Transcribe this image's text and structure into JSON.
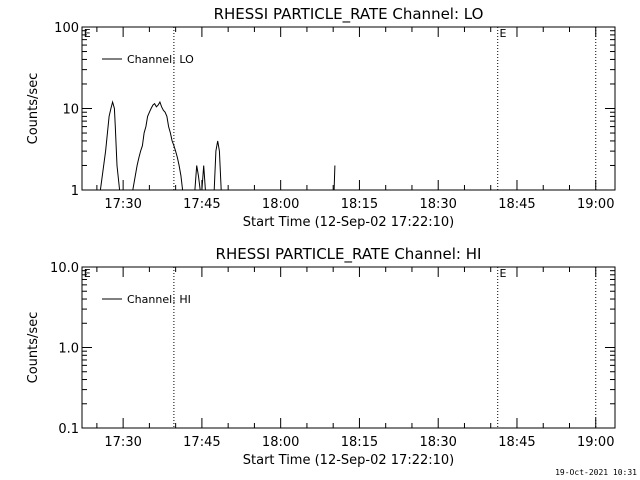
{
  "timestamp": "19-Oct-2021 10:31",
  "chart_data": [
    {
      "type": "line",
      "title": "RHESSI PARTICLE_RATE Channel: LO",
      "xlabel": "Start Time (12-Sep-02 17:22:10)",
      "ylabel": "Counts/sec",
      "yscale": "log",
      "ylim": [
        1,
        100
      ],
      "ytick_values": [
        1,
        10,
        100
      ],
      "ytick_labels": [
        "1",
        "10",
        "100"
      ],
      "xlim": [
        "17:22:10",
        "19:03:40"
      ],
      "xticks": [
        "17:30",
        "17:45",
        "18:00",
        "18:15",
        "18:30",
        "18:45",
        "19:00"
      ],
      "event_lines": [
        "17:39:40",
        "18:41:20",
        "19:00:00"
      ],
      "event_markers": [
        {
          "label": "E",
          "x": "17:22:30"
        },
        {
          "label": "E",
          "x": "18:41:40"
        }
      ],
      "legend_position": "upper-left",
      "series": [
        {
          "name": "Channel: LO",
          "x": [
            "17:25:40",
            "17:26:40",
            "17:27:20",
            "17:27:40",
            "17:28:00",
            "17:28:20",
            "17:28:30",
            "17:28:50",
            "17:29:20",
            "17:30:00",
            "17:31:50",
            "17:32:40",
            "17:33:00",
            "17:33:20",
            "17:33:40",
            "17:34:00",
            "17:34:20",
            "17:34:40",
            "17:35:00",
            "17:35:20",
            "17:35:40",
            "17:36:00",
            "17:36:20",
            "17:36:40",
            "17:37:00",
            "17:37:20",
            "17:37:40",
            "17:38:00",
            "17:38:20",
            "17:38:40",
            "17:39:00",
            "17:39:20",
            "17:39:40",
            "17:40:00",
            "17:40:20",
            "17:40:40",
            "17:41:00",
            "17:41:20",
            "17:41:40",
            "17:42:00",
            "17:42:20",
            "17:42:40",
            "17:43:00",
            "17:43:20",
            "17:43:40",
            "17:44:00",
            "17:44:20",
            "17:44:40",
            "17:45:00",
            "17:45:20",
            "17:45:40",
            "17:46:00",
            "17:46:20",
            "17:46:40",
            "17:47:00",
            "17:47:20",
            "17:47:40",
            "17:48:00",
            "17:48:20",
            "17:48:40",
            "18:10:10",
            "18:10:20"
          ],
          "y": [
            1,
            3,
            8,
            10,
            12,
            10,
            6,
            2,
            1,
            1,
            1,
            2,
            2.5,
            3,
            3.5,
            5,
            6,
            8,
            9,
            10,
            11,
            11.5,
            10.5,
            11,
            12,
            10.5,
            9.5,
            9,
            8,
            6,
            5,
            4,
            3.5,
            3,
            2.5,
            2,
            1.5,
            1,
            1,
            1,
            1,
            1,
            1,
            1,
            1,
            2,
            1.5,
            1,
            1,
            2,
            1,
            1,
            1,
            1,
            1,
            1,
            3,
            4,
            3,
            1,
            1,
            2
          ]
        }
      ]
    },
    {
      "type": "line",
      "title": "RHESSI PARTICLE_RATE Channel: HI",
      "xlabel": "Start Time (12-Sep-02 17:22:10)",
      "ylabel": "Counts/sec",
      "yscale": "log",
      "ylim": [
        0.1,
        10
      ],
      "ytick_values": [
        0.1,
        1,
        10
      ],
      "ytick_labels": [
        "0.1",
        "1.0",
        "10.0"
      ],
      "xlim": [
        "17:22:10",
        "19:03:40"
      ],
      "xticks": [
        "17:30",
        "17:45",
        "18:00",
        "18:15",
        "18:30",
        "18:45",
        "19:00"
      ],
      "event_lines": [
        "17:39:40",
        "18:41:20",
        "19:00:00"
      ],
      "event_markers": [
        {
          "label": "E",
          "x": "17:22:30"
        },
        {
          "label": "E",
          "x": "18:41:40"
        }
      ],
      "legend_position": "upper-left",
      "series": [
        {
          "name": "Channel: HI",
          "x": [],
          "y": []
        }
      ]
    }
  ]
}
